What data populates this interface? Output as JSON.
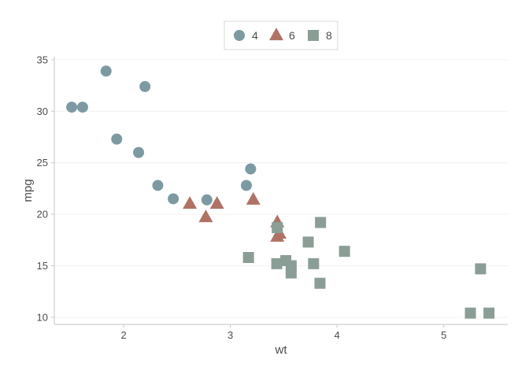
{
  "chart_data": {
    "type": "scatter",
    "xlabel": "wt",
    "ylabel": "mpg",
    "xlim": [
      1.35,
      5.6
    ],
    "ylim": [
      9.3,
      35.3
    ],
    "x_ticks": [
      2,
      3,
      4,
      5
    ],
    "y_ticks": [
      10,
      15,
      20,
      25,
      30,
      35
    ],
    "grid": true,
    "legend_position": "top",
    "series": [
      {
        "name": "4",
        "marker": "circle",
        "color": "#7d9aa3",
        "points": [
          [
            1.513,
            30.4
          ],
          [
            1.615,
            30.4
          ],
          [
            1.835,
            33.9
          ],
          [
            1.935,
            27.3
          ],
          [
            2.14,
            26.0
          ],
          [
            2.2,
            32.4
          ],
          [
            2.32,
            22.8
          ],
          [
            2.465,
            21.5
          ],
          [
            2.78,
            21.4
          ],
          [
            3.15,
            22.8
          ],
          [
            3.19,
            24.4
          ]
        ]
      },
      {
        "name": "6",
        "marker": "triangle",
        "color": "#b07265",
        "points": [
          [
            2.62,
            21.0
          ],
          [
            2.77,
            19.7
          ],
          [
            2.875,
            21.0
          ],
          [
            3.215,
            21.4
          ],
          [
            3.44,
            19.2
          ],
          [
            3.44,
            17.8
          ],
          [
            3.46,
            18.1
          ]
        ]
      },
      {
        "name": "8",
        "marker": "square",
        "color": "#8a9e96",
        "points": [
          [
            3.17,
            15.8
          ],
          [
            3.435,
            15.2
          ],
          [
            3.44,
            18.7
          ],
          [
            3.52,
            15.5
          ],
          [
            3.57,
            14.3
          ],
          [
            3.57,
            15.0
          ],
          [
            3.73,
            17.3
          ],
          [
            3.78,
            15.2
          ],
          [
            3.84,
            13.3
          ],
          [
            3.845,
            19.2
          ],
          [
            4.07,
            16.4
          ],
          [
            5.25,
            10.4
          ],
          [
            5.345,
            14.7
          ],
          [
            5.424,
            10.4
          ]
        ]
      }
    ]
  }
}
